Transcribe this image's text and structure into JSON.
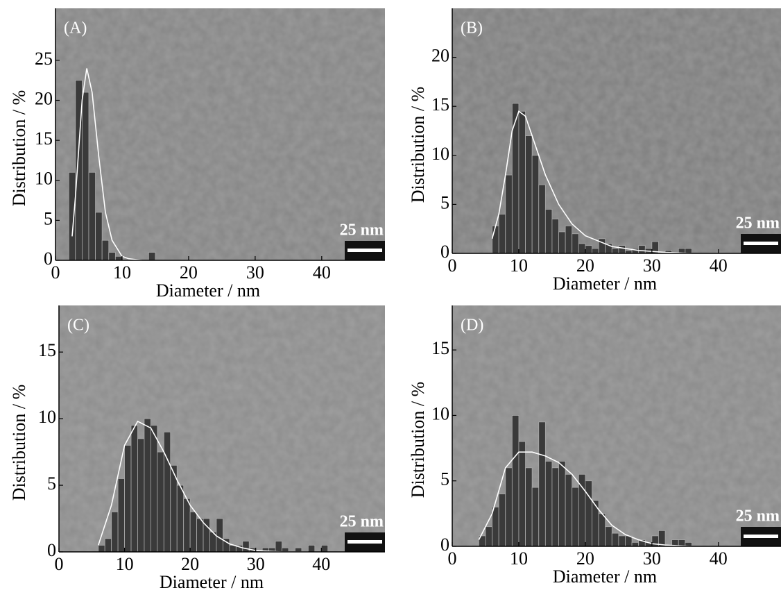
{
  "chart_data": [
    {
      "type": "histogram",
      "panel_label": "(A)",
      "xlabel": "Diameter / nm",
      "ylabel": "Distribution / %",
      "scale_bar": "25 nm",
      "xlim": [
        0,
        49.5
      ],
      "ylim": [
        0,
        31.5
      ],
      "xticks": [
        0,
        10,
        20,
        30,
        40
      ],
      "yticks": [
        0,
        5,
        10,
        15,
        20,
        25
      ],
      "bins": [
        2,
        3,
        4,
        5,
        6,
        7,
        8,
        9,
        10,
        11,
        12,
        13,
        14,
        15,
        16
      ],
      "values": [
        11,
        22.5,
        21,
        11,
        6,
        2.5,
        1,
        0.5,
        0,
        0,
        0,
        0,
        1,
        0
      ],
      "color": "#3a3a3a",
      "fit": {
        "color": "#ffffff",
        "x": [
          2.5,
          3,
          4,
          4.7,
          5.5,
          6.5,
          7.5,
          8.5,
          10,
          11,
          13
        ],
        "y": [
          3,
          8,
          20,
          24,
          21,
          13,
          6,
          2.5,
          0.5,
          0.2,
          0
        ]
      }
    },
    {
      "type": "histogram",
      "panel_label": "(B)",
      "xlabel": "Diameter / nm",
      "ylabel": "Distribution / %",
      "scale_bar": "25 nm",
      "xlim": [
        0,
        49.4
      ],
      "ylim": [
        0,
        25
      ],
      "xticks": [
        0,
        10,
        20,
        30,
        40
      ],
      "yticks": [
        0,
        5,
        10,
        15,
        20
      ],
      "bins": [
        6,
        7,
        8,
        9,
        10,
        11,
        12,
        13,
        14,
        15,
        16,
        17,
        18,
        19,
        20,
        21,
        22,
        23,
        24,
        25,
        26,
        27,
        28,
        29,
        30,
        31,
        32,
        33,
        34,
        35,
        36
      ],
      "values": [
        2.8,
        4,
        8,
        15.3,
        14.5,
        12,
        10,
        7,
        4.5,
        3.5,
        2.2,
        2.8,
        2,
        1,
        0.8,
        0.5,
        1.5,
        1,
        0.5,
        0.8,
        0.3,
        0.5,
        0.8,
        0.5,
        1.2,
        0,
        0.3,
        0,
        0.5,
        0.5
      ],
      "color": "#3a3a3a",
      "fit": {
        "color": "#ffffff",
        "x": [
          6,
          7,
          8,
          9,
          10,
          11,
          12,
          14,
          16,
          18,
          20,
          24,
          28,
          32,
          36
        ],
        "y": [
          1.5,
          4,
          8,
          12.5,
          14.5,
          14,
          12,
          8,
          5,
          3,
          1.8,
          0.7,
          0.3,
          0.1,
          0
        ]
      }
    },
    {
      "type": "histogram",
      "panel_label": "(C)",
      "xlabel": "Diameter / nm",
      "ylabel": "Distribution / %",
      "scale_bar": "25 nm",
      "xlim": [
        0,
        49.7
      ],
      "ylim": [
        0,
        18.5
      ],
      "xticks": [
        0,
        10,
        20,
        30,
        40
      ],
      "yticks": [
        0,
        5,
        10,
        15
      ],
      "bins": [
        6,
        7,
        8,
        9,
        10,
        11,
        12,
        13,
        14,
        15,
        16,
        17,
        18,
        19,
        20,
        21,
        22,
        23,
        24,
        25,
        26,
        27,
        28,
        29,
        30,
        31,
        32,
        33,
        34,
        35,
        36,
        37,
        38,
        39,
        40,
        41
      ],
      "values": [
        0.5,
        1,
        3,
        5.5,
        8,
        9.5,
        8.5,
        10,
        9.5,
        7.5,
        9,
        6.5,
        5,
        4,
        3,
        2.5,
        2.5,
        1.5,
        2.5,
        1,
        0.5,
        0.5,
        0.8,
        0.3,
        0,
        0.3,
        0.3,
        0.8,
        0.3,
        0,
        0.3,
        0,
        0.5,
        0,
        0.5
      ],
      "color": "#3a3a3a",
      "fit": {
        "color": "#ffffff",
        "x": [
          6,
          8,
          10,
          12,
          14,
          16,
          18,
          20,
          22,
          24,
          26,
          28,
          30,
          34,
          38
        ],
        "y": [
          0.5,
          3.5,
          8,
          9.8,
          9.3,
          7.5,
          5.4,
          3.5,
          2.2,
          1.2,
          0.6,
          0.3,
          0.1,
          0,
          0
        ]
      }
    },
    {
      "type": "histogram",
      "panel_label": "(D)",
      "xlabel": "Diameter / nm",
      "ylabel": "Distribution / %",
      "scale_bar": "25 nm",
      "xlim": [
        0,
        49.4
      ],
      "ylim": [
        0,
        18.4
      ],
      "xticks": [
        0,
        10,
        20,
        30,
        40
      ],
      "yticks": [
        0,
        5,
        10,
        15
      ],
      "bins": [
        4,
        5,
        6,
        7,
        8,
        9,
        10,
        11,
        12,
        13,
        14,
        15,
        16,
        17,
        18,
        19,
        20,
        21,
        22,
        23,
        24,
        25,
        26,
        27,
        28,
        29,
        30,
        31,
        32,
        33,
        34,
        35,
        36
      ],
      "values": [
        0.8,
        1.5,
        3,
        4,
        6,
        10,
        8,
        6,
        4.5,
        9.5,
        6.5,
        6,
        6.5,
        5.5,
        4.5,
        5.5,
        5,
        3.5,
        2.5,
        1.5,
        1,
        0.8,
        0.8,
        0.3,
        0.5,
        0.3,
        0.8,
        1.2,
        0,
        0.5,
        0.5,
        0.3
      ],
      "color": "#3a3a3a",
      "fit": {
        "color": "#ffffff",
        "x": [
          4,
          6,
          8,
          10,
          12,
          14,
          16,
          18,
          20,
          22,
          24,
          26,
          28,
          30,
          32,
          36
        ],
        "y": [
          0.5,
          2.5,
          6,
          7.2,
          7.2,
          6.9,
          6.4,
          5.5,
          4.2,
          2.8,
          1.6,
          0.9,
          0.5,
          0.2,
          0.1,
          0
        ]
      }
    }
  ]
}
